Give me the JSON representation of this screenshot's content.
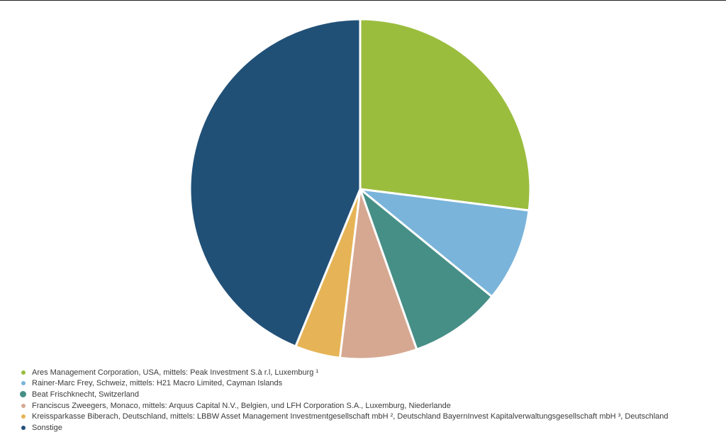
{
  "chart_data": {
    "type": "pie",
    "start_angle_deg": 0,
    "direction": "clockwise",
    "slices": [
      {
        "label": "Ares Management Corporation, USA, mittels: Peak Investment S.à r.l, Luxemburg ¹",
        "value": 27.0,
        "color": "#9bbd3e"
      },
      {
        "label": "Rainer-Marc Frey, Schweiz, mittels: H21 Macro Limited, Cayman Islands",
        "value": 8.9,
        "color": "#7ab4da"
      },
      {
        "label": "Beat Frischknecht, Switzerland",
        "value": 8.7,
        "color": "#468f86"
      },
      {
        "label": "Franciscus Zweegers, Monaco, mittels: Arquus Capital N.V., Belgien, und LFH Corporation S.A., Luxemburg, Niederlande",
        "value": 7.3,
        "color": "#d6a891"
      },
      {
        "label": "Kreissparkasse Biberach, Deutschland, mittels: LBBW Asset Management Investmentgesellschaft mbH ², Deutschland BayernInvest Kapitalverwaltungsgesellschaft mbH ³, Deutschland",
        "value": 4.3,
        "color": "#e6b456"
      },
      {
        "label": "Sonstige",
        "value": 43.8,
        "color": "#215077"
      }
    ],
    "legend_position": "bottom-left"
  }
}
